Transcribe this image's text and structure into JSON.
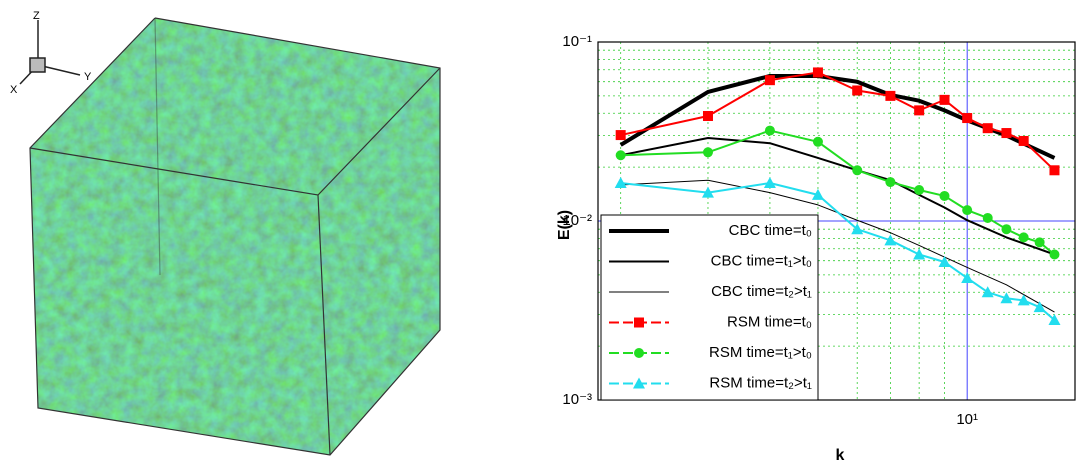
{
  "triad": {
    "z": "Z",
    "y": "Y",
    "x": "X"
  },
  "chart_data": {
    "type": "line",
    "xlabel": "k",
    "ylabel": "E(k)",
    "log_x": true,
    "log_y": true,
    "xlim": [
      1.8,
      16.5
    ],
    "ylim": [
      0.001,
      0.1
    ],
    "xticks": [
      {
        "value": 10,
        "label": "10¹"
      }
    ],
    "yticks": [
      {
        "value": 0.001,
        "label": "10⁻³"
      },
      {
        "value": 0.01,
        "label": "10⁻²"
      },
      {
        "value": 0.1,
        "label": "10⁻¹"
      }
    ],
    "minor_xticks": [
      2,
      3,
      4,
      5,
      6,
      7,
      8,
      9
    ],
    "minor_yticks": [
      0.002,
      0.003,
      0.004,
      0.005,
      0.006,
      0.007,
      0.008,
      0.009,
      0.02,
      0.03,
      0.04,
      0.05,
      0.06,
      0.07,
      0.08,
      0.09
    ],
    "grid": true,
    "legend": "lower left",
    "series": [
      {
        "name": "CBC time=t₀",
        "color": "#000000",
        "linewidth": 4,
        "marker": "none",
        "x": [
          2,
          3,
          4,
          5,
          6,
          7,
          8,
          9,
          10,
          12,
          15
        ],
        "values": [
          0.0266,
          0.0526,
          0.0646,
          0.0646,
          0.06,
          0.0506,
          0.047,
          0.0415,
          0.0365,
          0.03,
          0.0225
        ]
      },
      {
        "name": "CBC time=t₁>t₀",
        "color": "#000000",
        "linewidth": 2,
        "marker": "none",
        "x": [
          2,
          3,
          4,
          5,
          6,
          7,
          8,
          9,
          10,
          12,
          15
        ],
        "values": [
          0.0233,
          0.0291,
          0.0272,
          0.0225,
          0.0192,
          0.0169,
          0.014,
          0.0119,
          0.0101,
          0.0081,
          0.0065
        ]
      },
      {
        "name": "CBC time=t₂>t₁",
        "color": "#000000",
        "linewidth": 1,
        "marker": "none",
        "x": [
          2,
          3,
          4,
          5,
          6,
          7,
          8,
          10,
          12,
          15
        ],
        "values": [
          0.0159,
          0.0169,
          0.0144,
          0.0123,
          0.0101,
          0.0086,
          0.0073,
          0.0055,
          0.0044,
          0.0031
        ]
      },
      {
        "name": "RSM time=t₀",
        "color": "#ff0000",
        "linewidth": 2,
        "marker": "square",
        "x": [
          2,
          3,
          4,
          5,
          6,
          7,
          8,
          9,
          10,
          11,
          12,
          13,
          15
        ],
        "values": [
          0.0302,
          0.0386,
          0.0612,
          0.0676,
          0.0536,
          0.05,
          0.0415,
          0.0475,
          0.0376,
          0.033,
          0.031,
          0.028,
          0.0192
        ]
      },
      {
        "name": "RSM time=t₁>t₀",
        "color": "#22dd22",
        "linewidth": 2,
        "marker": "circle",
        "x": [
          2,
          3,
          4,
          5,
          6,
          7,
          8,
          9,
          10,
          11,
          12,
          13,
          14,
          15
        ],
        "values": [
          0.0233,
          0.0242,
          0.032,
          0.0277,
          0.0192,
          0.0165,
          0.0149,
          0.0138,
          0.0115,
          0.0104,
          0.009,
          0.0081,
          0.0076,
          0.0065
        ]
      },
      {
        "name": "RSM time=t₂>t₁",
        "color": "#22ddee",
        "linewidth": 2,
        "marker": "triangle",
        "x": [
          2,
          3,
          4,
          5,
          6,
          7,
          8,
          9,
          10,
          11,
          12,
          13,
          14,
          15
        ],
        "values": [
          0.0163,
          0.0144,
          0.0163,
          0.014,
          0.009,
          0.0078,
          0.0065,
          0.0059,
          0.0048,
          0.004,
          0.0037,
          0.0036,
          0.0033,
          0.0028
        ]
      }
    ]
  }
}
